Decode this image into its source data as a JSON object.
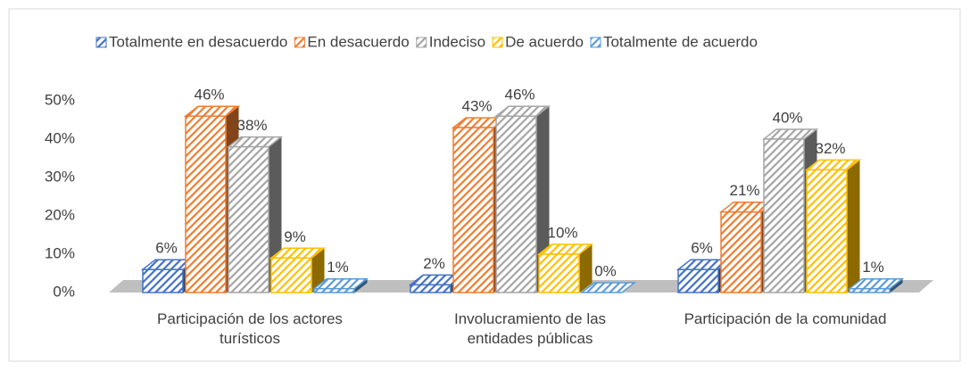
{
  "chart_data": {
    "type": "bar3d",
    "categories": [
      "Participación de los actores turísticos",
      "Involucramiento de las entidades públicas",
      "Participación de la comunidad"
    ],
    "series": [
      {
        "name": "Totalmente en desacuerdo",
        "color": "#4472c4",
        "values": [
          6,
          2,
          6
        ],
        "value_labels": [
          "6%",
          "2%",
          "6%"
        ]
      },
      {
        "name": "En desacuerdo",
        "color": "#ed7d31",
        "values": [
          46,
          43,
          21
        ],
        "value_labels": [
          "46%",
          "43%",
          "21%"
        ]
      },
      {
        "name": "Indeciso",
        "color": "#a5a5a5",
        "values": [
          38,
          46,
          40
        ],
        "value_labels": [
          "38%",
          "46%",
          "40%"
        ]
      },
      {
        "name": "De acuerdo",
        "color": "#ffc000",
        "values": [
          9,
          10,
          32
        ],
        "value_labels": [
          "9%",
          "10%",
          "32%"
        ]
      },
      {
        "name": "Totalmente de acuerdo",
        "color": "#5b9bd5",
        "values": [
          1,
          0,
          1
        ],
        "value_labels": [
          "1%",
          "0%",
          "1%"
        ]
      }
    ],
    "ylim": [
      0,
      50
    ],
    "yticks": [
      {
        "value": 0,
        "label": "0%"
      },
      {
        "value": 10,
        "label": "10%"
      },
      {
        "value": 20,
        "label": "20%"
      },
      {
        "value": 30,
        "label": "30%"
      },
      {
        "value": 40,
        "label": "40%"
      },
      {
        "value": 50,
        "label": "50%"
      }
    ],
    "legend": "top"
  }
}
